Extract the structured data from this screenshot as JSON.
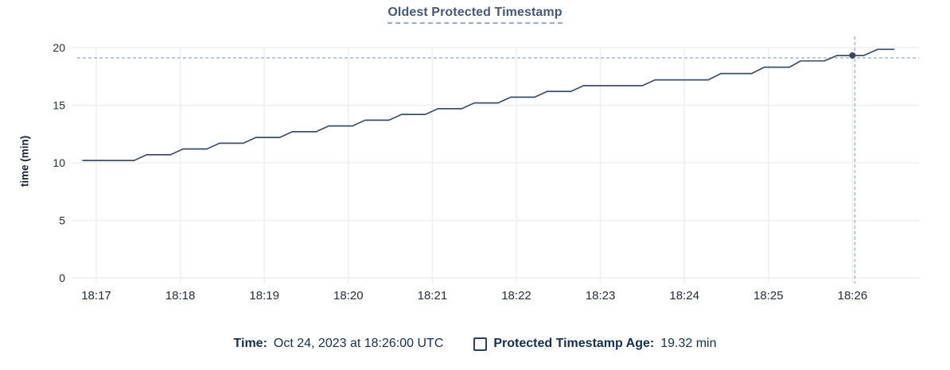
{
  "title": {
    "text": "Oldest Protected Timestamp"
  },
  "y_axis": {
    "label": "time (min)"
  },
  "legend": {
    "time_label": "Time:",
    "time_value": "Oct 24, 2023 at 18:26:00 UTC",
    "series_label": "Protected Timestamp Age:",
    "series_value": "19.32 min",
    "checkbox_icon": "empty-square-checkbox"
  },
  "colors": {
    "line": "#3f4e68",
    "dot": "#3a4961",
    "grid": "#efefef",
    "crosshair": "#a4b7c8",
    "title_text": "#475872",
    "title_underline": "#9aaabf",
    "axis_text": "#242e3a",
    "legend_text": "#14304d",
    "background": "#ffffff"
  },
  "chart_data": {
    "type": "line",
    "title": "Oldest Protected Timestamp",
    "xlabel": "",
    "ylabel": "time (min)",
    "ylim": [
      0,
      20
    ],
    "y_ticks": [
      0,
      5,
      10,
      15,
      20
    ],
    "x_ticks": [
      "18:17",
      "18:18",
      "18:19",
      "18:20",
      "18:21",
      "18:22",
      "18:23",
      "18:24",
      "18:25",
      "18:26"
    ],
    "grid": true,
    "legend_position": "bottom",
    "series": [
      {
        "name": "Protected Timestamp Age",
        "unit": "min",
        "points": [
          [
            "18:16:50",
            10.2
          ],
          [
            "18:17:27",
            10.2
          ],
          [
            "18:17:36",
            10.7
          ],
          [
            "18:17:53",
            10.7
          ],
          [
            "18:18:02",
            11.2
          ],
          [
            "18:18:19",
            11.2
          ],
          [
            "18:18:28",
            11.7
          ],
          [
            "18:18:45",
            11.7
          ],
          [
            "18:18:54",
            12.2
          ],
          [
            "18:19:11",
            12.2
          ],
          [
            "18:19:20",
            12.7
          ],
          [
            "18:19:37",
            12.7
          ],
          [
            "18:19:46",
            13.2
          ],
          [
            "18:20:03",
            13.2
          ],
          [
            "18:20:12",
            13.7
          ],
          [
            "18:20:29",
            13.7
          ],
          [
            "18:20:38",
            14.2
          ],
          [
            "18:20:55",
            14.2
          ],
          [
            "18:21:04",
            14.7
          ],
          [
            "18:21:21",
            14.7
          ],
          [
            "18:21:30",
            15.2
          ],
          [
            "18:21:47",
            15.2
          ],
          [
            "18:21:56",
            15.7
          ],
          [
            "18:22:13",
            15.7
          ],
          [
            "18:22:22",
            16.2
          ],
          [
            "18:22:39",
            16.2
          ],
          [
            "18:22:48",
            16.7
          ],
          [
            "18:23:30",
            16.7
          ],
          [
            "18:23:39",
            17.2
          ],
          [
            "18:24:17",
            17.2
          ],
          [
            "18:24:26",
            17.75
          ],
          [
            "18:24:48",
            17.75
          ],
          [
            "18:24:57",
            18.3
          ],
          [
            "18:25:15",
            18.3
          ],
          [
            "18:25:23",
            18.85
          ],
          [
            "18:25:40",
            18.85
          ],
          [
            "18:25:49",
            19.32
          ],
          [
            "18:26:08",
            19.32
          ],
          [
            "18:26:18",
            19.85
          ],
          [
            "18:26:30",
            19.85
          ]
        ]
      }
    ],
    "hover": {
      "time": "18:26:00",
      "time_full_label": "Oct 24, 2023 at 18:26:00 UTC",
      "value": 19.32,
      "value_label": "19.32 min"
    }
  }
}
